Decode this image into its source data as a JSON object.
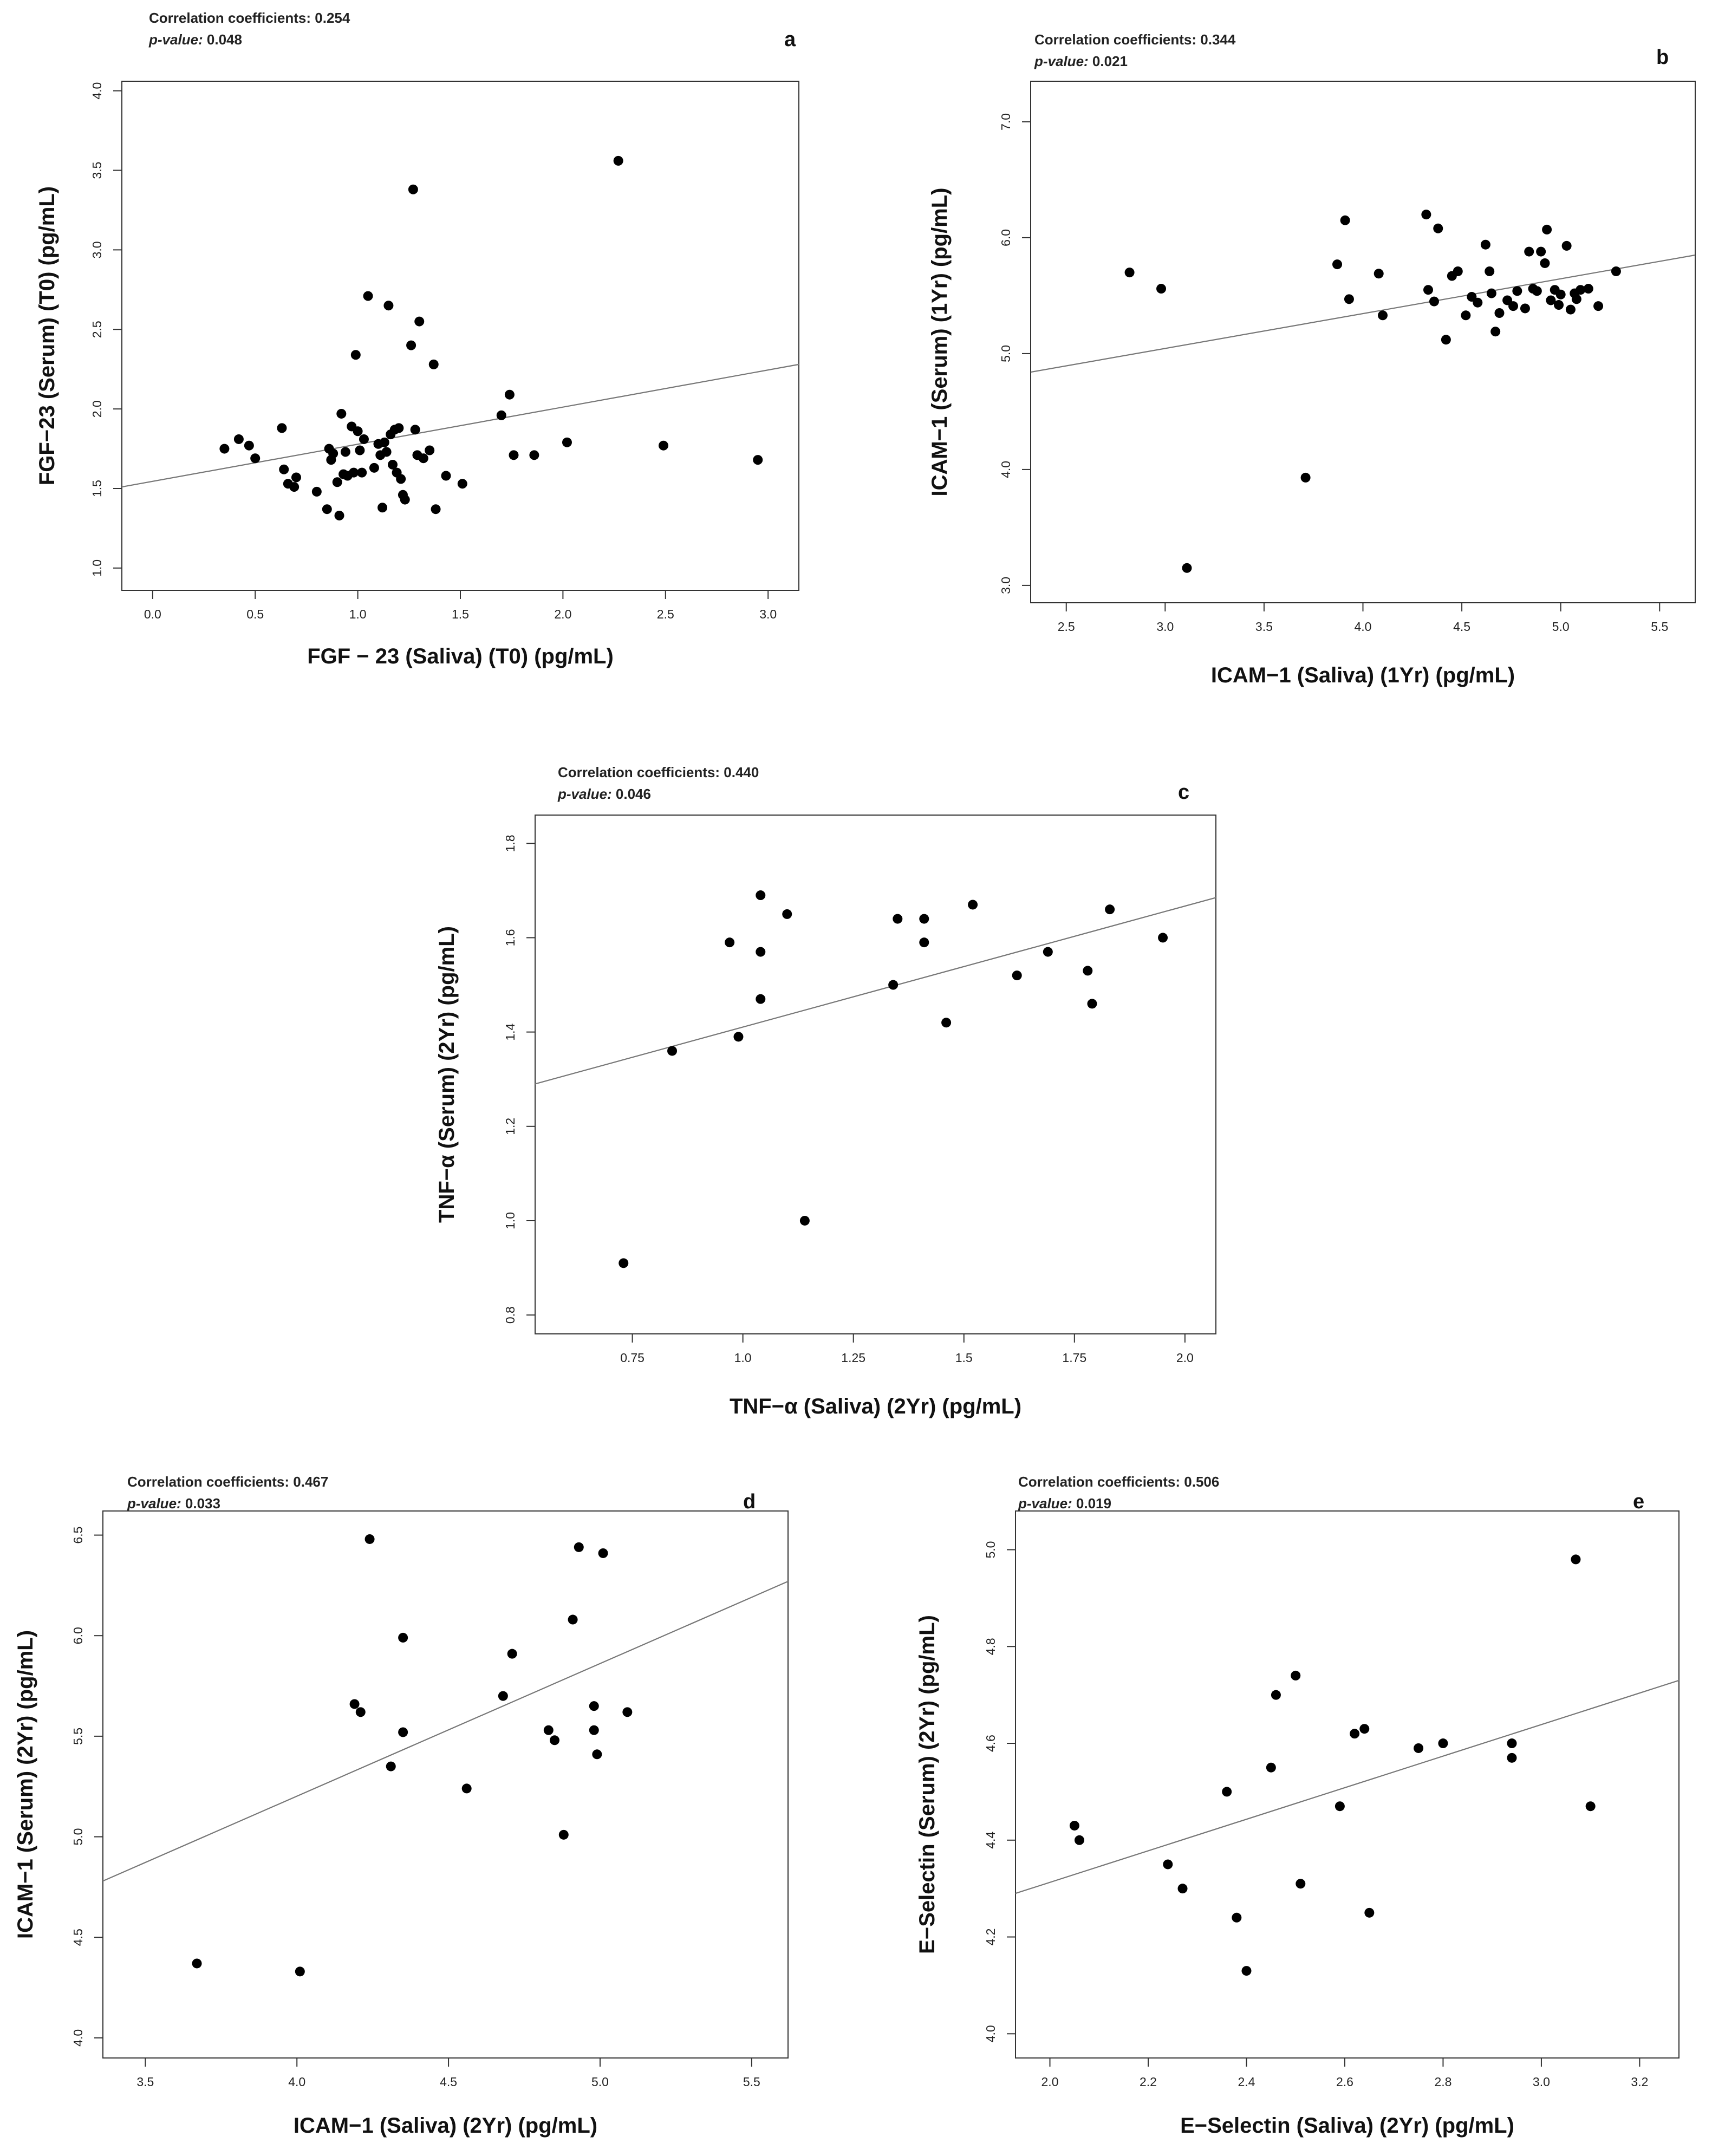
{
  "chart_data": [
    {
      "type": "scatter",
      "panel_label": "a",
      "stats": {
        "coefficient_label": "Correlation coefficients:",
        "coefficient": "0.254",
        "p_label": "p-value",
        "p_value": "0.048"
      },
      "xlabel": "FGF − 23 (Saliva) (T0) (pg/mL)",
      "ylabel": "FGF−23 (Serum) (T0) (pg/mL)",
      "xlim": [
        -0.15,
        3.15
      ],
      "ylim": [
        0.86,
        4.06
      ],
      "xticks": [
        0.0,
        0.5,
        1.0,
        1.5,
        2.0,
        2.5,
        3.0
      ],
      "xtick_labels": [
        "0.0",
        "0.5",
        "1.0",
        "1.5",
        "2.0",
        "2.5",
        "3.0"
      ],
      "yticks": [
        1.0,
        1.5,
        2.0,
        2.5,
        3.0,
        3.5,
        4.0
      ],
      "ytick_labels": [
        "1.0",
        "1.5",
        "2.0",
        "2.5",
        "3.0",
        "3.5",
        "4.0"
      ],
      "regression_line": [
        [
          -0.15,
          1.51
        ],
        [
          3.15,
          2.28
        ]
      ],
      "x": [
        0.35,
        0.42,
        0.47,
        0.5,
        0.63,
        0.64,
        0.66,
        0.69,
        0.7,
        0.8,
        0.85,
        0.86,
        0.87,
        0.88,
        0.9,
        0.91,
        0.92,
        0.93,
        0.94,
        0.95,
        0.97,
        0.98,
        0.99,
        1.0,
        1.01,
        1.02,
        1.03,
        1.05,
        1.08,
        1.1,
        1.11,
        1.12,
        1.13,
        1.14,
        1.15,
        1.16,
        1.17,
        1.18,
        1.19,
        1.2,
        1.21,
        1.22,
        1.23,
        1.26,
        1.27,
        1.28,
        1.29,
        1.3,
        1.32,
        1.35,
        1.37,
        1.38,
        1.43,
        1.51,
        1.7,
        1.74,
        1.76,
        1.86,
        2.02,
        2.27,
        2.49,
        2.95
      ],
      "y": [
        1.75,
        1.81,
        1.77,
        1.69,
        1.88,
        1.62,
        1.53,
        1.51,
        1.57,
        1.48,
        1.37,
        1.75,
        1.68,
        1.72,
        1.54,
        1.33,
        1.97,
        1.59,
        1.73,
        1.58,
        1.89,
        1.6,
        2.34,
        1.86,
        1.74,
        1.6,
        1.81,
        2.71,
        1.63,
        1.78,
        1.71,
        1.38,
        1.79,
        1.73,
        2.65,
        1.84,
        1.65,
        1.87,
        1.6,
        1.88,
        1.56,
        1.46,
        1.43,
        2.4,
        3.38,
        1.87,
        1.71,
        2.55,
        1.69,
        1.74,
        2.28,
        1.37,
        1.58,
        1.53,
        1.96,
        2.09,
        1.71,
        1.71,
        1.79,
        3.56,
        1.77,
        1.68
      ]
    },
    {
      "type": "scatter",
      "panel_label": "b",
      "stats": {
        "coefficient_label": "Correlation coefficients:",
        "coefficient": "0.344",
        "p_label": "p-value",
        "p_value": "0.021"
      },
      "xlabel": "ICAM−1 (Saliva) (1Yr) (pg/mL)",
      "ylabel": "ICAM−1 (Serum) (1Yr) (pg/mL)",
      "xlim": [
        2.32,
        5.68
      ],
      "ylim": [
        2.85,
        7.35
      ],
      "xticks": [
        2.5,
        3.0,
        3.5,
        4.0,
        4.5,
        5.0,
        5.5
      ],
      "xtick_labels": [
        "2.5",
        "3.0",
        "3.5",
        "4.0",
        "4.5",
        "5.0",
        "5.5"
      ],
      "yticks": [
        3.0,
        4.0,
        5.0,
        6.0,
        7.0
      ],
      "ytick_labels": [
        "3.0",
        "4.0",
        "5.0",
        "6.0",
        "7.0"
      ],
      "regression_line": [
        [
          2.32,
          4.84
        ],
        [
          5.68,
          5.85
        ]
      ],
      "x": [
        2.82,
        2.98,
        3.11,
        3.71,
        3.87,
        3.91,
        3.93,
        4.08,
        4.1,
        4.32,
        4.33,
        4.36,
        4.38,
        4.42,
        4.45,
        4.48,
        4.52,
        4.55,
        4.58,
        4.62,
        4.64,
        4.65,
        4.67,
        4.69,
        4.73,
        4.76,
        4.78,
        4.82,
        4.84,
        4.86,
        4.88,
        4.9,
        4.92,
        4.93,
        4.95,
        4.97,
        4.99,
        5.0,
        5.03,
        5.05,
        5.07,
        5.08,
        5.1,
        5.14,
        5.19,
        5.28
      ],
      "y": [
        5.7,
        5.56,
        3.15,
        3.93,
        5.77,
        6.15,
        5.47,
        5.69,
        5.33,
        6.2,
        5.55,
        5.45,
        6.08,
        5.12,
        5.67,
        5.71,
        5.33,
        5.49,
        5.44,
        5.94,
        5.71,
        5.52,
        5.19,
        5.35,
        5.46,
        5.41,
        5.54,
        5.39,
        5.88,
        5.56,
        5.54,
        5.88,
        5.78,
        6.07,
        5.46,
        5.55,
        5.42,
        5.51,
        5.93,
        5.38,
        5.52,
        5.47,
        5.55,
        5.56,
        5.41,
        5.71
      ]
    },
    {
      "type": "scatter",
      "panel_label": "c",
      "stats": {
        "coefficient_label": "Correlation coefficients:",
        "coefficient": "0.440",
        "p_label": "p-value",
        "p_value": "0.046"
      },
      "xlabel": "TNF−α (Saliva) (2Yr) (pg/mL)",
      "ylabel": "TNF−α (Serum) (2Yr) (pg/mL)",
      "xlim": [
        0.53,
        2.07
      ],
      "ylim": [
        0.76,
        1.86
      ],
      "xticks": [
        0.75,
        1.0,
        1.25,
        1.5,
        1.75,
        2.0
      ],
      "xtick_labels": [
        "0.75",
        "1.0",
        "1.25",
        "1.5",
        "1.75",
        "2.0"
      ],
      "yticks": [
        0.8,
        1.0,
        1.2,
        1.4,
        1.6,
        1.8
      ],
      "ytick_labels": [
        "0.8",
        "1.0",
        "1.2",
        "1.4",
        "1.6",
        "1.8"
      ],
      "regression_line": [
        [
          0.53,
          1.29
        ],
        [
          2.07,
          1.685
        ]
      ],
      "x": [
        0.73,
        0.84,
        0.97,
        0.99,
        1.04,
        1.04,
        1.04,
        1.1,
        1.14,
        1.34,
        1.35,
        1.41,
        1.41,
        1.46,
        1.52,
        1.62,
        1.69,
        1.78,
        1.79,
        1.83,
        1.95
      ],
      "y": [
        0.91,
        1.36,
        1.59,
        1.39,
        1.69,
        1.57,
        1.47,
        1.65,
        1.0,
        1.5,
        1.64,
        1.64,
        1.59,
        1.42,
        1.67,
        1.52,
        1.57,
        1.53,
        1.46,
        1.66,
        1.6
      ]
    },
    {
      "type": "scatter",
      "panel_label": "d",
      "stats": {
        "coefficient_label": "Correlation coefficients:",
        "coefficient": "0.467",
        "p_label": "p-value",
        "p_value": "0.033"
      },
      "xlabel": "ICAM−1 (Saliva) (2Yr) (pg/mL)",
      "ylabel": "ICAM−1 (Serum) (2Yr) (pg/mL)",
      "xlim": [
        3.36,
        5.62
      ],
      "ylim": [
        3.9,
        6.62
      ],
      "xticks": [
        3.5,
        4.0,
        4.5,
        5.0,
        5.5
      ],
      "xtick_labels": [
        "3.5",
        "4.0",
        "4.5",
        "5.0",
        "5.5"
      ],
      "yticks": [
        4.0,
        4.5,
        5.0,
        5.5,
        6.0,
        6.5
      ],
      "ytick_labels": [
        "4.0",
        "4.5",
        "5.0",
        "5.5",
        "6.0",
        "6.5"
      ],
      "regression_line": [
        [
          3.36,
          4.78
        ],
        [
          5.62,
          6.27
        ]
      ],
      "x": [
        3.67,
        4.01,
        4.19,
        4.21,
        4.24,
        4.31,
        4.35,
        4.35,
        4.56,
        4.68,
        4.71,
        4.83,
        4.85,
        4.88,
        4.91,
        4.93,
        4.98,
        4.98,
        4.99,
        5.01,
        5.09
      ],
      "y": [
        4.37,
        4.33,
        5.66,
        5.62,
        6.48,
        5.35,
        5.99,
        5.52,
        5.24,
        5.7,
        5.91,
        5.53,
        5.48,
        5.01,
        6.08,
        6.44,
        5.53,
        5.65,
        5.41,
        6.41,
        5.62
      ]
    },
    {
      "type": "scatter",
      "panel_label": "e",
      "stats": {
        "coefficient_label": "Correlation coefficients:",
        "coefficient": "0.506",
        "p_label": "p-value",
        "p_value": "0.019"
      },
      "xlabel": "E−Selectin (Saliva) (2Yr) (pg/mL)",
      "ylabel": "E−Selectin (Serum) (2Yr) (pg/mL)",
      "xlim": [
        1.93,
        3.28
      ],
      "ylim": [
        3.95,
        5.08
      ],
      "xticks": [
        2.0,
        2.2,
        2.4,
        2.6,
        2.8,
        3.0,
        3.2
      ],
      "xtick_labels": [
        "2.0",
        "2.2",
        "2.4",
        "2.6",
        "2.8",
        "3.0",
        "3.2"
      ],
      "yticks": [
        4.0,
        4.2,
        4.4,
        4.6,
        4.8,
        5.0
      ],
      "ytick_labels": [
        "4.0",
        "4.2",
        "4.4",
        "4.6",
        "4.8",
        "5.0"
      ],
      "regression_line": [
        [
          1.93,
          4.29
        ],
        [
          3.28,
          4.73
        ]
      ],
      "x": [
        2.05,
        2.06,
        2.24,
        2.27,
        2.36,
        2.38,
        2.4,
        2.45,
        2.46,
        2.5,
        2.51,
        2.59,
        2.62,
        2.64,
        2.65,
        2.75,
        2.8,
        2.94,
        2.94,
        3.07,
        3.1
      ],
      "y": [
        4.43,
        4.4,
        4.35,
        4.3,
        4.5,
        4.24,
        4.13,
        4.55,
        4.7,
        4.74,
        4.31,
        4.47,
        4.62,
        4.63,
        4.25,
        4.59,
        4.6,
        4.57,
        4.6,
        4.98,
        4.47
      ]
    }
  ]
}
